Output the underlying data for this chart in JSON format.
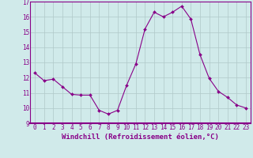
{
  "x": [
    0,
    1,
    2,
    3,
    4,
    5,
    6,
    7,
    8,
    9,
    10,
    11,
    12,
    13,
    14,
    15,
    16,
    17,
    18,
    19,
    20,
    21,
    22,
    23
  ],
  "y": [
    12.3,
    11.8,
    11.9,
    11.4,
    10.9,
    10.85,
    10.85,
    9.85,
    9.6,
    9.85,
    11.5,
    12.9,
    15.2,
    16.3,
    16.0,
    16.3,
    16.7,
    15.85,
    13.5,
    11.95,
    11.1,
    10.7,
    10.2,
    10.0
  ],
  "line_color": "#880088",
  "marker": "D",
  "marker_size": 2.0,
  "bg_color": "#d0eaea",
  "grid_color": "#b0c8c8",
  "ylabel_ticks": [
    9,
    10,
    11,
    12,
    13,
    14,
    15,
    16,
    17
  ],
  "xlabel": "Windchill (Refroidissement éolien,°C)",
  "ylim": [
    9,
    17
  ],
  "xlim": [
    -0.5,
    23.5
  ],
  "tick_fontsize": 5.5,
  "label_fontsize": 6.5
}
